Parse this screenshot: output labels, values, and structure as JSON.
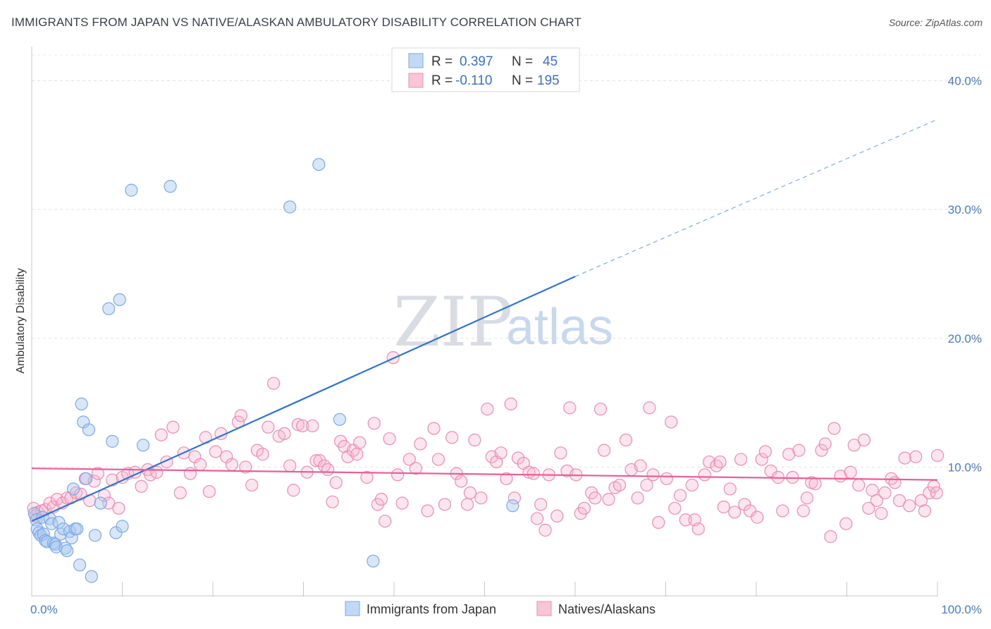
{
  "title": "IMMIGRANTS FROM JAPAN VS NATIVE/ALASKAN AMBULATORY DISABILITY CORRELATION CHART",
  "source": "Source: ZipAtlas.com",
  "watermark": {
    "zip": "ZIP",
    "atlas": "atlas"
  },
  "colors": {
    "blue": "#7aaae8",
    "blue_line": "#2f74d0",
    "pink": "#f08cb0",
    "pink_line": "#e8609a",
    "tick_text": "#4a7cc8"
  },
  "chart_data": {
    "type": "scatter",
    "xlabel": "",
    "ylabel": "Ambulatory Disability",
    "xlim": [
      0,
      100
    ],
    "ylim": [
      0,
      42
    ],
    "x_tick_labels": [
      "0.0%",
      "100.0%"
    ],
    "y_ticks": [
      10,
      20,
      30,
      40
    ],
    "y_tick_labels": [
      "10.0%",
      "20.0%",
      "30.0%",
      "40.0%"
    ],
    "grid": true,
    "legend_stats": [
      {
        "r_label": "R =",
        "r_value": "0.397",
        "n_label": "N =",
        "n_value": "45"
      },
      {
        "r_label": "R =",
        "r_value": "-0.110",
        "n_label": "N =",
        "n_value": "195"
      }
    ],
    "series": [
      {
        "name": "Immigrants from Japan",
        "color": "#7aaae8",
        "trend": {
          "x0": 0,
          "y0": 5.8,
          "x1": 60,
          "y1": 24.8,
          "x_dash_end": 100,
          "y_dash_end": 37.0
        },
        "points": [
          [
            0.3,
            6.4
          ],
          [
            0.5,
            5.9
          ],
          [
            0.6,
            5.2
          ],
          [
            0.8,
            4.9
          ],
          [
            1.0,
            4.7
          ],
          [
            1.2,
            6.1
          ],
          [
            1.3,
            4.8
          ],
          [
            1.5,
            4.3
          ],
          [
            1.7,
            4.2
          ],
          [
            2.0,
            6.0
          ],
          [
            2.2,
            5.6
          ],
          [
            2.4,
            4.1
          ],
          [
            2.6,
            4.0
          ],
          [
            2.7,
            3.8
          ],
          [
            3.0,
            5.7
          ],
          [
            3.2,
            4.8
          ],
          [
            3.5,
            5.2
          ],
          [
            3.7,
            3.7
          ],
          [
            3.9,
            3.5
          ],
          [
            4.2,
            5.0
          ],
          [
            4.4,
            4.5
          ],
          [
            4.6,
            8.3
          ],
          [
            4.8,
            5.2
          ],
          [
            5.0,
            5.2
          ],
          [
            5.3,
            2.4
          ],
          [
            5.5,
            14.9
          ],
          [
            5.7,
            13.5
          ],
          [
            6.0,
            9.1
          ],
          [
            6.3,
            12.9
          ],
          [
            6.6,
            1.5
          ],
          [
            7.0,
            4.7
          ],
          [
            7.6,
            7.2
          ],
          [
            8.5,
            22.3
          ],
          [
            8.9,
            12.0
          ],
          [
            9.3,
            4.9
          ],
          [
            9.7,
            23.0
          ],
          [
            10.0,
            5.4
          ],
          [
            11.0,
            31.5
          ],
          [
            12.3,
            11.7
          ],
          [
            15.3,
            31.8
          ],
          [
            28.5,
            30.2
          ],
          [
            31.7,
            33.5
          ],
          [
            34.0,
            13.7
          ],
          [
            37.7,
            2.7
          ],
          [
            53.1,
            7.0
          ]
        ],
        "legend_label": "Immigrants from Japan"
      },
      {
        "name": "Natives/Alaskans",
        "color": "#f08cb0",
        "trend": {
          "x0": 0,
          "y0": 9.9,
          "x1": 100,
          "y1": 9.0
        },
        "points": [
          [
            0.2,
            6.8
          ],
          [
            0.4,
            6.2
          ],
          [
            0.7,
            6.5
          ],
          [
            1.1,
            6.6
          ],
          [
            1.5,
            6.7
          ],
          [
            2.0,
            7.2
          ],
          [
            2.4,
            6.9
          ],
          [
            2.8,
            7.5
          ],
          [
            3.4,
            7.2
          ],
          [
            3.9,
            7.6
          ],
          [
            4.3,
            7.6
          ],
          [
            4.9,
            8.0
          ],
          [
            5.4,
            7.9
          ],
          [
            5.9,
            9.1
          ],
          [
            6.4,
            7.4
          ],
          [
            6.9,
            8.9
          ],
          [
            7.3,
            9.5
          ],
          [
            8.0,
            7.8
          ],
          [
            8.5,
            7.2
          ],
          [
            8.9,
            9.0
          ],
          [
            9.6,
            6.8
          ],
          [
            10.0,
            9.2
          ],
          [
            10.6,
            9.5
          ],
          [
            11.4,
            9.6
          ],
          [
            12.1,
            8.5
          ],
          [
            12.8,
            9.8
          ],
          [
            13.1,
            9.4
          ],
          [
            13.8,
            9.6
          ],
          [
            14.3,
            12.5
          ],
          [
            14.9,
            10.4
          ],
          [
            15.6,
            13.1
          ],
          [
            16.4,
            8.0
          ],
          [
            16.8,
            11.1
          ],
          [
            17.5,
            9.5
          ],
          [
            18.0,
            10.8
          ],
          [
            18.6,
            10.2
          ],
          [
            19.2,
            12.3
          ],
          [
            19.6,
            8.1
          ],
          [
            20.3,
            11.2
          ],
          [
            20.9,
            12.6
          ],
          [
            21.5,
            10.8
          ],
          [
            22.1,
            10.2
          ],
          [
            22.8,
            13.5
          ],
          [
            23.1,
            14.0
          ],
          [
            23.6,
            10.0
          ],
          [
            24.3,
            8.6
          ],
          [
            24.9,
            11.3
          ],
          [
            25.5,
            11.0
          ],
          [
            26.1,
            13.1
          ],
          [
            26.7,
            16.5
          ],
          [
            27.3,
            12.4
          ],
          [
            27.9,
            12.6
          ],
          [
            28.5,
            10.1
          ],
          [
            28.9,
            8.2
          ],
          [
            29.4,
            13.3
          ],
          [
            29.9,
            13.2
          ],
          [
            30.4,
            9.6
          ],
          [
            31.0,
            13.2
          ],
          [
            31.4,
            10.5
          ],
          [
            31.8,
            10.5
          ],
          [
            32.3,
            10.1
          ],
          [
            32.7,
            9.8
          ],
          [
            33.2,
            7.3
          ],
          [
            33.6,
            8.8
          ],
          [
            34.1,
            12.0
          ],
          [
            34.5,
            11.6
          ],
          [
            34.9,
            10.8
          ],
          [
            35.5,
            11.3
          ],
          [
            35.9,
            11.0
          ],
          [
            36.2,
            11.9
          ],
          [
            37.0,
            9.2
          ],
          [
            37.8,
            13.4
          ],
          [
            38.2,
            7.1
          ],
          [
            38.6,
            7.5
          ],
          [
            39.0,
            5.8
          ],
          [
            39.5,
            12.2
          ],
          [
            39.9,
            18.5
          ],
          [
            40.4,
            9.4
          ],
          [
            40.9,
            7.2
          ],
          [
            41.7,
            10.6
          ],
          [
            42.4,
            9.9
          ],
          [
            42.9,
            11.8
          ],
          [
            43.7,
            6.6
          ],
          [
            44.4,
            13.0
          ],
          [
            44.9,
            10.6
          ],
          [
            45.6,
            7.1
          ],
          [
            46.4,
            12.3
          ],
          [
            46.9,
            9.5
          ],
          [
            47.4,
            8.9
          ],
          [
            48.1,
            7.1
          ],
          [
            48.4,
            8.0
          ],
          [
            48.9,
            12.1
          ],
          [
            49.6,
            7.6
          ],
          [
            50.3,
            14.5
          ],
          [
            50.8,
            10.8
          ],
          [
            51.3,
            10.4
          ],
          [
            51.8,
            11.1
          ],
          [
            52.4,
            9.1
          ],
          [
            52.9,
            14.9
          ],
          [
            53.3,
            7.6
          ],
          [
            53.7,
            10.7
          ],
          [
            54.3,
            10.3
          ],
          [
            54.9,
            9.6
          ],
          [
            55.4,
            9.5
          ],
          [
            55.8,
            6.0
          ],
          [
            56.2,
            7.1
          ],
          [
            56.7,
            5.1
          ],
          [
            57.1,
            9.4
          ],
          [
            58.0,
            6.2
          ],
          [
            58.4,
            11.1
          ],
          [
            59.1,
            9.7
          ],
          [
            59.4,
            14.6
          ],
          [
            60.1,
            9.4
          ],
          [
            60.6,
            6.4
          ],
          [
            61.0,
            6.8
          ],
          [
            61.8,
            8.0
          ],
          [
            62.2,
            7.6
          ],
          [
            62.8,
            14.5
          ],
          [
            63.2,
            11.3
          ],
          [
            63.7,
            7.5
          ],
          [
            64.4,
            8.4
          ],
          [
            64.9,
            8.6
          ],
          [
            65.6,
            12.1
          ],
          [
            66.2,
            9.8
          ],
          [
            66.9,
            7.6
          ],
          [
            67.2,
            10.1
          ],
          [
            67.9,
            8.6
          ],
          [
            68.2,
            14.6
          ],
          [
            68.6,
            9.4
          ],
          [
            69.2,
            5.7
          ],
          [
            70.1,
            9.1
          ],
          [
            70.6,
            13.5
          ],
          [
            71.0,
            6.8
          ],
          [
            71.6,
            7.8
          ],
          [
            72.2,
            5.9
          ],
          [
            72.9,
            8.6
          ],
          [
            73.2,
            5.9
          ],
          [
            73.6,
            5.2
          ],
          [
            74.3,
            9.4
          ],
          [
            74.8,
            10.4
          ],
          [
            75.6,
            10.1
          ],
          [
            76.0,
            10.4
          ],
          [
            76.4,
            6.9
          ],
          [
            77.1,
            8.3
          ],
          [
            77.6,
            6.5
          ],
          [
            78.3,
            10.6
          ],
          [
            78.7,
            7.1
          ],
          [
            79.3,
            6.6
          ],
          [
            80.1,
            6.1
          ],
          [
            80.6,
            10.6
          ],
          [
            81.0,
            11.2
          ],
          [
            81.6,
            9.7
          ],
          [
            82.4,
            9.2
          ],
          [
            82.9,
            6.6
          ],
          [
            83.6,
            11.0
          ],
          [
            84.0,
            9.2
          ],
          [
            84.7,
            11.3
          ],
          [
            85.2,
            6.6
          ],
          [
            85.6,
            7.6
          ],
          [
            86.1,
            8.8
          ],
          [
            86.5,
            8.7
          ],
          [
            87.2,
            11.3
          ],
          [
            87.6,
            11.8
          ],
          [
            88.2,
            4.6
          ],
          [
            88.6,
            13.0
          ],
          [
            89.3,
            9.3
          ],
          [
            89.9,
            5.6
          ],
          [
            90.4,
            9.6
          ],
          [
            90.8,
            11.7
          ],
          [
            91.3,
            8.6
          ],
          [
            91.9,
            12.1
          ],
          [
            92.4,
            6.8
          ],
          [
            92.8,
            8.2
          ],
          [
            93.3,
            7.4
          ],
          [
            93.8,
            6.4
          ],
          [
            94.2,
            8.0
          ],
          [
            94.9,
            9.1
          ],
          [
            95.3,
            8.8
          ],
          [
            95.8,
            7.4
          ],
          [
            96.4,
            10.7
          ],
          [
            96.9,
            7.0
          ],
          [
            97.6,
            10.8
          ],
          [
            98.2,
            7.4
          ],
          [
            98.6,
            6.6
          ],
          [
            99.1,
            8.0
          ],
          [
            99.6,
            8.5
          ],
          [
            99.9,
            8.0
          ],
          [
            100.0,
            10.9
          ]
        ],
        "legend_label": "Natives/Alaskans"
      }
    ]
  }
}
